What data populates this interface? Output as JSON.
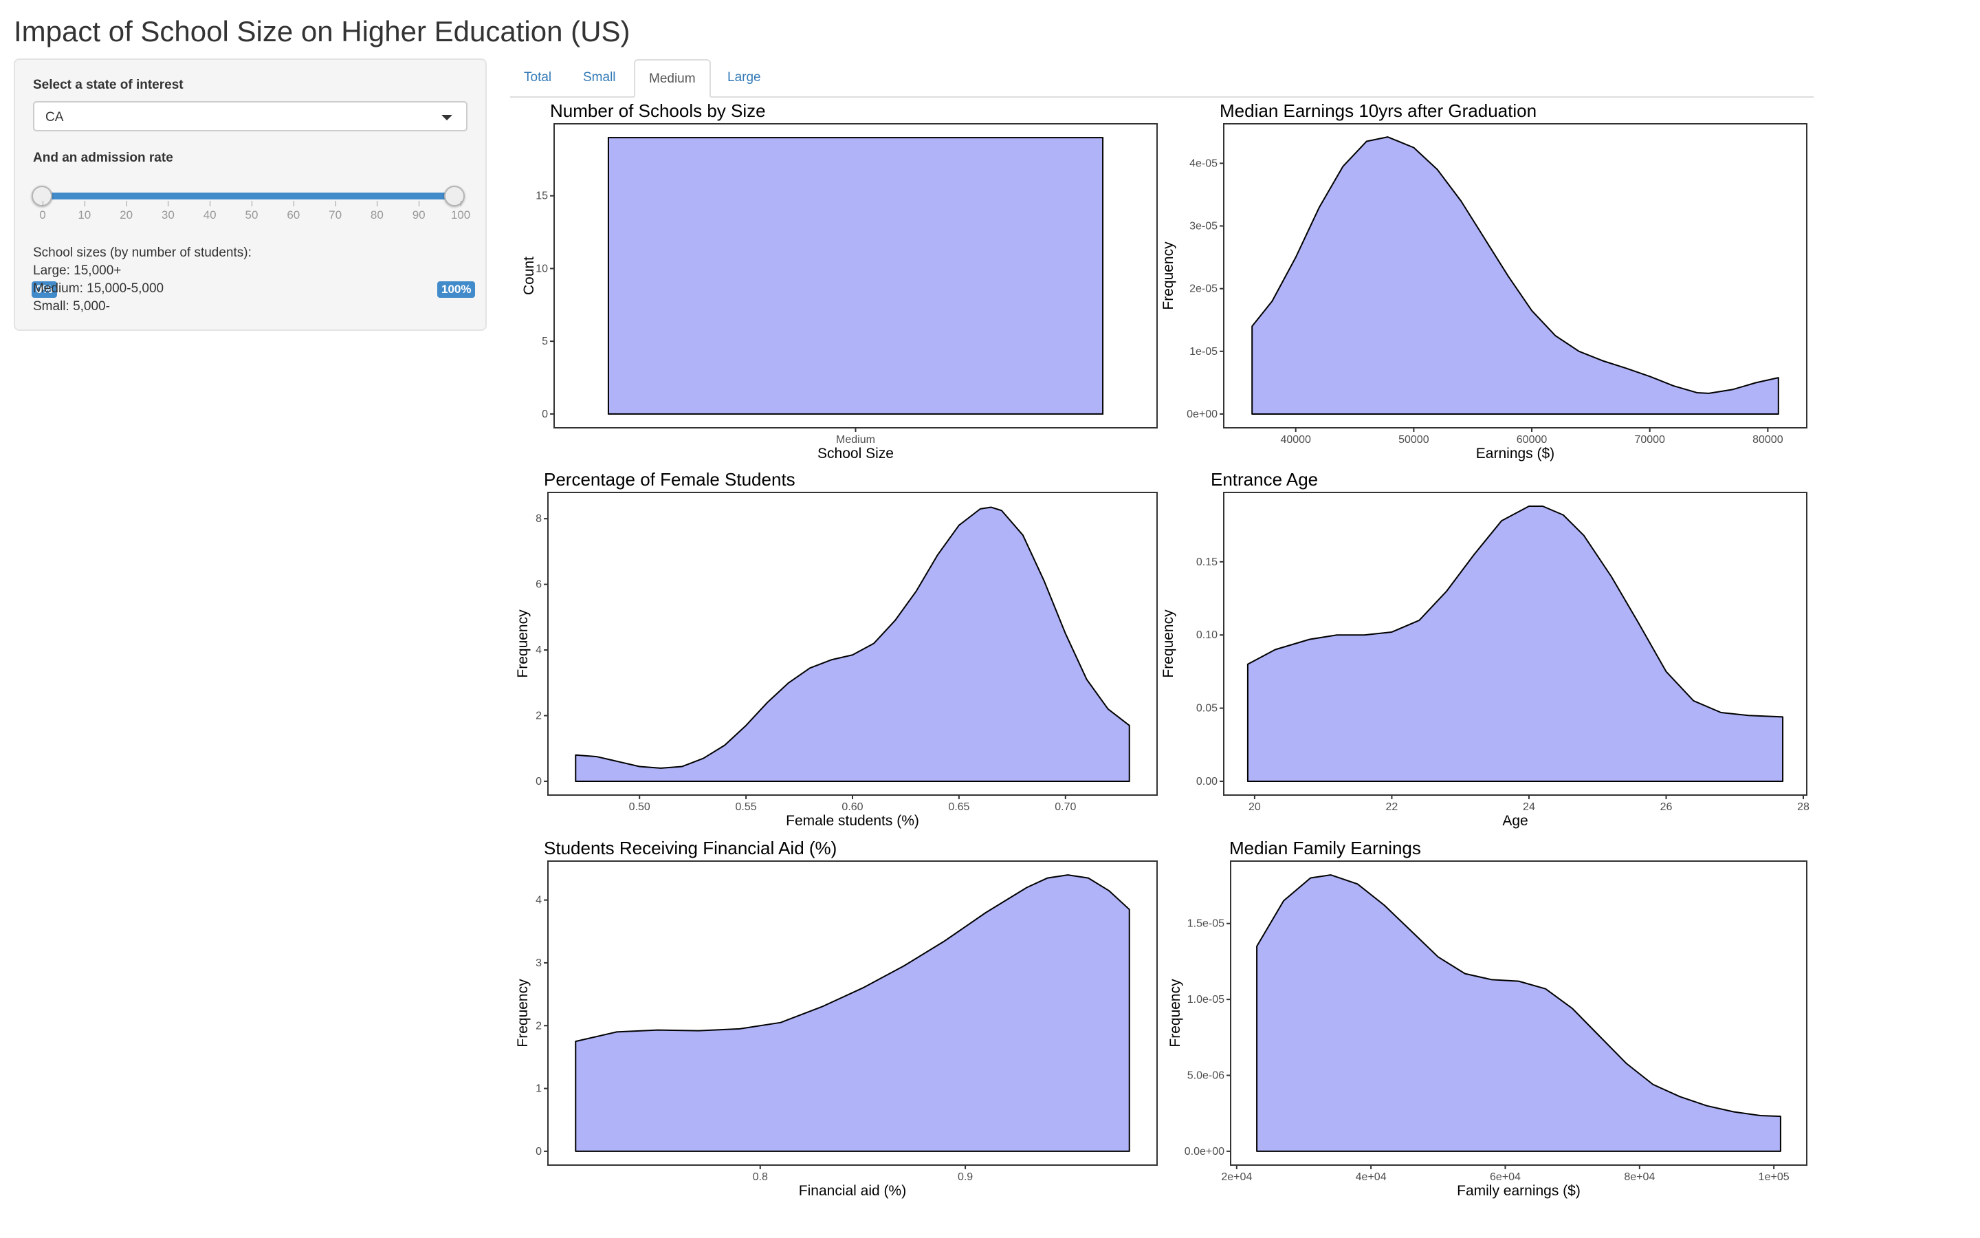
{
  "app": {
    "title": "Impact of School Size on Higher Education (US)"
  },
  "sidebar": {
    "state_label": "Select a state of interest",
    "state_value": "CA",
    "rate_label": "And an admission rate",
    "rate_min_label": "0%",
    "rate_max_label": "100%",
    "rate_range": [
      0,
      100
    ],
    "rate_ticks": [
      "0",
      "10",
      "20",
      "30",
      "40",
      "50",
      "60",
      "70",
      "80",
      "90",
      "100"
    ],
    "sizes_header": "School sizes (by number of students):",
    "sizes_large": "Large: 15,000+",
    "sizes_medium": "Medium: 15,000-5,000",
    "sizes_small": "Small: 5,000-",
    "accent_color": "#428bca"
  },
  "tabs": [
    {
      "label": "Total",
      "active": false
    },
    {
      "label": "Small",
      "active": false
    },
    {
      "label": "Medium",
      "active": true
    },
    {
      "label": "Large",
      "active": false
    }
  ],
  "chart_data": [
    {
      "type": "bar",
      "title": "Number of Schools by Size",
      "xlabel": "School Size",
      "ylabel": "Count",
      "categories": [
        "Medium"
      ],
      "values": [
        19
      ],
      "ylim": [
        -0.95,
        19.95
      ],
      "yticks": [
        0,
        5,
        10,
        15
      ],
      "ytick_labels": [
        "0",
        "5",
        "10",
        "15"
      ],
      "fill": "#b0b3f7",
      "grid": false
    },
    {
      "type": "area",
      "title": "Median Earnings 10yrs after Graduation",
      "xlabel": "Earnings ($)",
      "ylabel": "Frequency",
      "x": [
        36300,
        38000,
        40000,
        42000,
        44000,
        46000,
        47800,
        50000,
        52000,
        54000,
        56000,
        58000,
        60000,
        62000,
        64000,
        66000,
        68000,
        70000,
        72000,
        74000,
        75000,
        77000,
        79000,
        80900
      ],
      "y": [
        1.4e-05,
        1.8e-05,
        2.5e-05,
        3.3e-05,
        3.95e-05,
        4.35e-05,
        4.42e-05,
        4.25e-05,
        3.9e-05,
        3.4e-05,
        2.8e-05,
        2.2e-05,
        1.65e-05,
        1.25e-05,
        1e-05,
        8.5e-06,
        7.3e-06,
        6e-06,
        4.5e-06,
        3.4e-06,
        3.3e-06,
        3.9e-06,
        5e-06,
        5.8e-06
      ],
      "xlim": [
        33900,
        83300
      ],
      "ylim": [
        -2.2e-06,
        4.63e-05
      ],
      "xticks": [
        40000,
        50000,
        60000,
        70000,
        80000
      ],
      "xtick_labels": [
        "40000",
        "50000",
        "60000",
        "70000",
        "80000"
      ],
      "yticks": [
        0,
        1e-05,
        2e-05,
        3e-05,
        4e-05
      ],
      "ytick_labels": [
        "0e+00",
        "1e-05",
        "2e-05",
        "3e-05",
        "4e-05"
      ],
      "fill": "#b0b3f7",
      "grid": false
    },
    {
      "type": "area",
      "title": "Percentage of Female Students",
      "xlabel": "Female students (%)",
      "ylabel": "Frequency",
      "x": [
        0.47,
        0.48,
        0.49,
        0.5,
        0.51,
        0.52,
        0.53,
        0.54,
        0.55,
        0.56,
        0.57,
        0.58,
        0.59,
        0.6,
        0.61,
        0.62,
        0.63,
        0.64,
        0.65,
        0.66,
        0.665,
        0.67,
        0.68,
        0.69,
        0.7,
        0.71,
        0.72,
        0.73
      ],
      "y": [
        0.8,
        0.75,
        0.6,
        0.45,
        0.4,
        0.45,
        0.7,
        1.1,
        1.7,
        2.4,
        3.0,
        3.45,
        3.7,
        3.85,
        4.2,
        4.9,
        5.8,
        6.9,
        7.8,
        8.3,
        8.35,
        8.25,
        7.5,
        6.1,
        4.5,
        3.1,
        2.2,
        1.7
      ],
      "xlim": [
        0.457,
        0.743
      ],
      "ylim": [
        -0.42,
        8.8
      ],
      "xticks": [
        0.5,
        0.55,
        0.6,
        0.65,
        0.7
      ],
      "xtick_labels": [
        "0.50",
        "0.55",
        "0.60",
        "0.65",
        "0.70"
      ],
      "yticks": [
        0,
        2,
        4,
        6,
        8
      ],
      "ytick_labels": [
        "0",
        "2",
        "4",
        "6",
        "8"
      ],
      "fill": "#b0b3f7",
      "grid": false
    },
    {
      "type": "area",
      "title": "Entrance Age",
      "xlabel": "Age",
      "ylabel": "Frequency",
      "x": [
        19.9,
        20.3,
        20.8,
        21.2,
        21.6,
        22.0,
        22.4,
        22.8,
        23.2,
        23.6,
        24.0,
        24.2,
        24.5,
        24.8,
        25.2,
        25.6,
        26.0,
        26.4,
        26.8,
        27.2,
        27.7
      ],
      "y": [
        0.08,
        0.09,
        0.097,
        0.1,
        0.1,
        0.102,
        0.11,
        0.13,
        0.155,
        0.178,
        0.188,
        0.188,
        0.182,
        0.168,
        0.14,
        0.108,
        0.075,
        0.055,
        0.047,
        0.045,
        0.044
      ],
      "xlim": [
        19.55,
        28.05
      ],
      "ylim": [
        -0.0094,
        0.1974
      ],
      "xticks": [
        20,
        22,
        24,
        26,
        28
      ],
      "xtick_labels": [
        "20",
        "22",
        "24",
        "26",
        "28"
      ],
      "yticks": [
        0,
        0.05,
        0.1,
        0.15
      ],
      "ytick_labels": [
        "0.00",
        "0.05",
        "0.10",
        "0.15"
      ],
      "fill": "#b0b3f7",
      "grid": false
    },
    {
      "type": "area",
      "title": "Students Receiving Financial Aid (%)",
      "xlabel": "Financial aid (%)",
      "ylabel": "Frequency",
      "x": [
        0.71,
        0.73,
        0.75,
        0.77,
        0.79,
        0.81,
        0.83,
        0.85,
        0.87,
        0.89,
        0.91,
        0.93,
        0.94,
        0.95,
        0.96,
        0.97,
        0.98
      ],
      "y": [
        1.75,
        1.9,
        1.93,
        1.92,
        1.95,
        2.05,
        2.3,
        2.6,
        2.95,
        3.35,
        3.8,
        4.2,
        4.35,
        4.4,
        4.35,
        4.15,
        3.85
      ],
      "xlim": [
        0.6965,
        0.9935
      ],
      "ylim": [
        -0.22,
        4.62
      ],
      "xticks": [
        0.8,
        0.9
      ],
      "xtick_labels": [
        "0.8",
        "0.9"
      ],
      "yticks": [
        0,
        1,
        2,
        3,
        4
      ],
      "ytick_labels": [
        "0",
        "1",
        "2",
        "3",
        "4"
      ],
      "fill": "#b0b3f7",
      "grid": false
    },
    {
      "type": "area",
      "title": "Median Family Earnings",
      "xlabel": "Family earnings ($)",
      "ylabel": "Frequency",
      "x": [
        23000,
        27000,
        31000,
        34000,
        38000,
        42000,
        46000,
        50000,
        54000,
        58000,
        62000,
        66000,
        70000,
        74000,
        78000,
        82000,
        86000,
        90000,
        94000,
        98000,
        101000
      ],
      "y": [
        1.35e-05,
        1.65e-05,
        1.8e-05,
        1.82e-05,
        1.76e-05,
        1.62e-05,
        1.45e-05,
        1.28e-05,
        1.17e-05,
        1.13e-05,
        1.12e-05,
        1.07e-05,
        9.4e-06,
        7.6e-06,
        5.8e-06,
        4.4e-06,
        3.6e-06,
        3e-06,
        2.6e-06,
        2.35e-06,
        2.3e-06
      ],
      "xlim": [
        19100,
        104900
      ],
      "ylim": [
        -9.1e-07,
        1.911e-05
      ],
      "xticks": [
        20000,
        40000,
        60000,
        80000,
        100000
      ],
      "xtick_labels": [
        "2e+04",
        "4e+04",
        "6e+04",
        "8e+04",
        "1e+05"
      ],
      "yticks": [
        0,
        5e-06,
        1e-05,
        1.5e-05
      ],
      "ytick_labels": [
        "0.0e+00",
        "5.0e-06",
        "1.0e-05",
        "1.5e-05"
      ],
      "fill": "#b0b3f7",
      "grid": false
    }
  ]
}
